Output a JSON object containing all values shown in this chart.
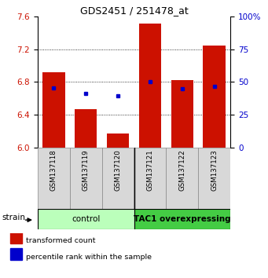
{
  "title": "GDS2451 / 251478_at",
  "samples": [
    "GSM137118",
    "GSM137119",
    "GSM137120",
    "GSM137121",
    "GSM137122",
    "GSM137123"
  ],
  "bar_values": [
    6.92,
    6.47,
    6.17,
    7.52,
    6.82,
    7.25
  ],
  "blue_values": [
    6.73,
    6.66,
    6.63,
    6.8,
    6.72,
    6.75
  ],
  "bar_color": "#cc1100",
  "blue_color": "#0000cc",
  "ymin": 6.0,
  "ymax": 7.6,
  "yticks_left": [
    6.0,
    6.4,
    6.8,
    7.2,
    7.6
  ],
  "yticks_right": [
    0,
    25,
    50,
    75,
    100
  ],
  "yright_labels": [
    "0",
    "25",
    "50",
    "75",
    "100%"
  ],
  "grid_values": [
    6.4,
    6.8,
    7.2
  ],
  "group_labels": [
    "control",
    "TAC1 overexpressing"
  ],
  "legend_items": [
    {
      "color": "#cc1100",
      "label": "transformed count"
    },
    {
      "color": "#0000cc",
      "label": "percentile rank within the sample"
    }
  ],
  "bar_width": 0.7,
  "group_bg_color_control": "#bbffbb",
  "group_bg_color_tac": "#44cc44",
  "sample_bg_color": "#d8d8d8"
}
